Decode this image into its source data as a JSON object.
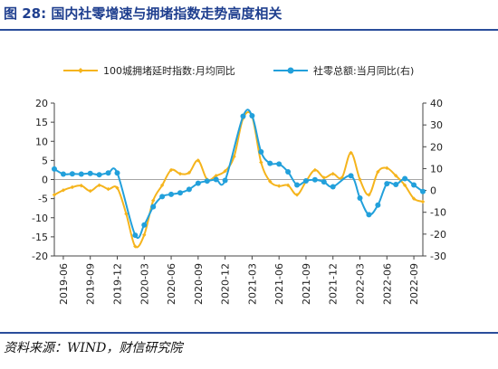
{
  "figure": {
    "title": "图 28:  国内社零增速与拥堵指数走势高度相关",
    "source": "资料来源：WIND，财信研究院"
  },
  "colors": {
    "series_left": "#f5b41c",
    "series_right": "#22a0db",
    "right_axis_negative": "#e02020",
    "rule": "#2a4d9b",
    "title": "#1f3f8f"
  },
  "chart_data": {
    "type": "line",
    "title": "",
    "xlabel": "",
    "ylabel_left": "",
    "ylabel_right": "",
    "legend_position": "top",
    "grid": false,
    "y_left": {
      "min": -20,
      "max": 20,
      "ticks": [
        -20,
        -15,
        -10,
        -5,
        0,
        5,
        10,
        15,
        20
      ]
    },
    "y_right": {
      "min": -30,
      "max": 40,
      "ticks": [
        -30,
        -20,
        -10,
        0,
        10,
        20,
        30,
        40
      ]
    },
    "x_tick_labels": [
      "2019-06",
      "2019-09",
      "2019-12",
      "2020-03",
      "2020-06",
      "2020-09",
      "2020-12",
      "2021-03",
      "2021-06",
      "2021-09",
      "2021-12",
      "2022-03",
      "2022-06",
      "2022-09"
    ],
    "x": [
      "2019-05",
      "2019-06",
      "2019-07",
      "2019-08",
      "2019-09",
      "2019-10",
      "2019-11",
      "2019-12",
      "2020-01",
      "2020-02",
      "2020-03",
      "2020-04",
      "2020-05",
      "2020-06",
      "2020-07",
      "2020-08",
      "2020-09",
      "2020-10",
      "2020-11",
      "2020-12",
      "2021-01",
      "2021-02",
      "2021-03",
      "2021-04",
      "2021-05",
      "2021-06",
      "2021-07",
      "2021-08",
      "2021-09",
      "2021-10",
      "2021-11",
      "2021-12",
      "2022-01",
      "2022-02",
      "2022-03",
      "2022-04",
      "2022-05",
      "2022-06",
      "2022-07",
      "2022-08",
      "2022-09",
      "2022-10"
    ],
    "series": [
      {
        "name": "100城拥堵延时指数:月均同比",
        "axis": "left",
        "color": "#f5b41c",
        "marker": "diamond",
        "values": [
          -4,
          -2.8,
          -2,
          -1.6,
          -3,
          -1.5,
          -2.5,
          -2.2,
          -9,
          -17.5,
          -14.5,
          -5.5,
          -1.5,
          2.5,
          1.5,
          1.8,
          5,
          0,
          1,
          2.2,
          6,
          16,
          16.5,
          4.5,
          -0.5,
          -1.7,
          -1.5,
          -4,
          -0.5,
          2.5,
          0.5,
          1.5,
          0.5,
          7,
          0,
          -4,
          2,
          3,
          1,
          -1.5,
          -5,
          -5.8
        ]
      },
      {
        "name": "社零总额:当月同比(右)",
        "axis": "right",
        "color": "#22a0db",
        "marker": "circle",
        "values": [
          9.8,
          7.5,
          7.6,
          7.5,
          7.8,
          7.2,
          8.0,
          8.0,
          null,
          -20.5,
          -15.8,
          -7.5,
          -2.8,
          -1.8,
          -1.1,
          0.5,
          3.3,
          4.3,
          5.0,
          4.6,
          null,
          34.0,
          34.2,
          17.7,
          12.4,
          12.1,
          8.5,
          2.5,
          4.4,
          4.9,
          3.9,
          1.7,
          null,
          6.7,
          -3.5,
          -11.1,
          -6.7,
          3.1,
          2.7,
          5.4,
          2.5,
          -0.5
        ]
      }
    ]
  }
}
